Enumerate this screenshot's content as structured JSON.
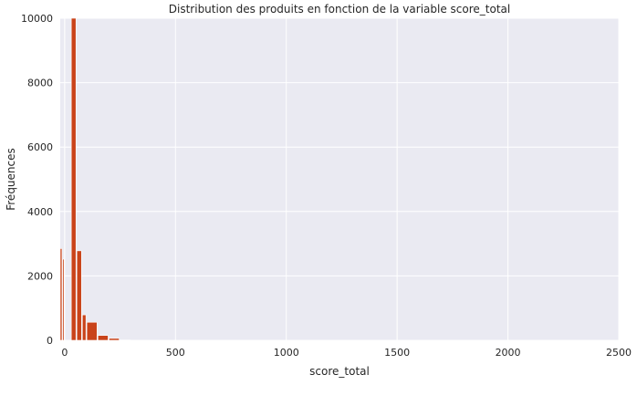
{
  "chart_data": {
    "type": "bar",
    "title": "Distribution des produits en fonction de la variable score_total",
    "xlabel": "score_total",
    "ylabel": "Fréquences",
    "xlim": [
      -20,
      2500
    ],
    "ylim": [
      0,
      10000
    ],
    "xticks": [
      0,
      500,
      1000,
      1500,
      2000,
      2500
    ],
    "yticks": [
      0,
      2000,
      4000,
      6000,
      8000,
      10000
    ],
    "xtick_labels": [
      "0",
      "500",
      "1000",
      "1500",
      "2000",
      "2500"
    ],
    "ytick_labels": [
      "0",
      "2000",
      "4000",
      "6000",
      "8000",
      "10000"
    ],
    "grid": true,
    "bar_color": "#c9431a",
    "background_color": "#eaeaf2",
    "bins": [
      {
        "x0": -20,
        "x1": -8,
        "value": 2850
      },
      {
        "x0": -8,
        "x1": 2,
        "value": 2520
      },
      {
        "x0": 2,
        "x1": 30,
        "value": 0
      },
      {
        "x0": 30,
        "x1": 55,
        "value": 10000
      },
      {
        "x0": 55,
        "x1": 80,
        "value": 2780
      },
      {
        "x0": 80,
        "x1": 100,
        "value": 790
      },
      {
        "x0": 100,
        "x1": 150,
        "value": 560
      },
      {
        "x0": 150,
        "x1": 200,
        "value": 150
      },
      {
        "x0": 200,
        "x1": 250,
        "value": 60
      },
      {
        "x0": 250,
        "x1": 300,
        "value": 10
      }
    ]
  }
}
